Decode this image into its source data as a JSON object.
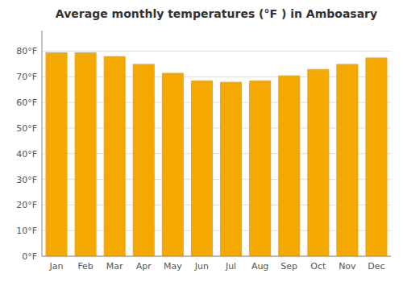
{
  "chart_data": {
    "type": "bar",
    "title": "Average monthly temperatures (°F ) in Amboasary",
    "categories": [
      "Jan",
      "Feb",
      "Mar",
      "Apr",
      "May",
      "Jun",
      "Jul",
      "Aug",
      "Sep",
      "Oct",
      "Nov",
      "Dec"
    ],
    "values": [
      79.5,
      79.5,
      78.0,
      75.0,
      71.5,
      68.5,
      68.0,
      68.5,
      70.5,
      73.0,
      75.0,
      77.5
    ],
    "color": "#F5A800",
    "ylim": [
      0,
      88
    ],
    "yticks": [
      {
        "value": 0,
        "label": "0°F"
      },
      {
        "value": 10,
        "label": "10°F"
      },
      {
        "value": 20,
        "label": "20°F"
      },
      {
        "value": 30,
        "label": "30°F"
      },
      {
        "value": 40,
        "label": "40°F"
      },
      {
        "value": 50,
        "label": "50°F"
      },
      {
        "value": 60,
        "label": "60°F"
      },
      {
        "value": 70,
        "label": "70°F"
      },
      {
        "value": 80,
        "label": "80°F"
      }
    ],
    "grid": true
  }
}
